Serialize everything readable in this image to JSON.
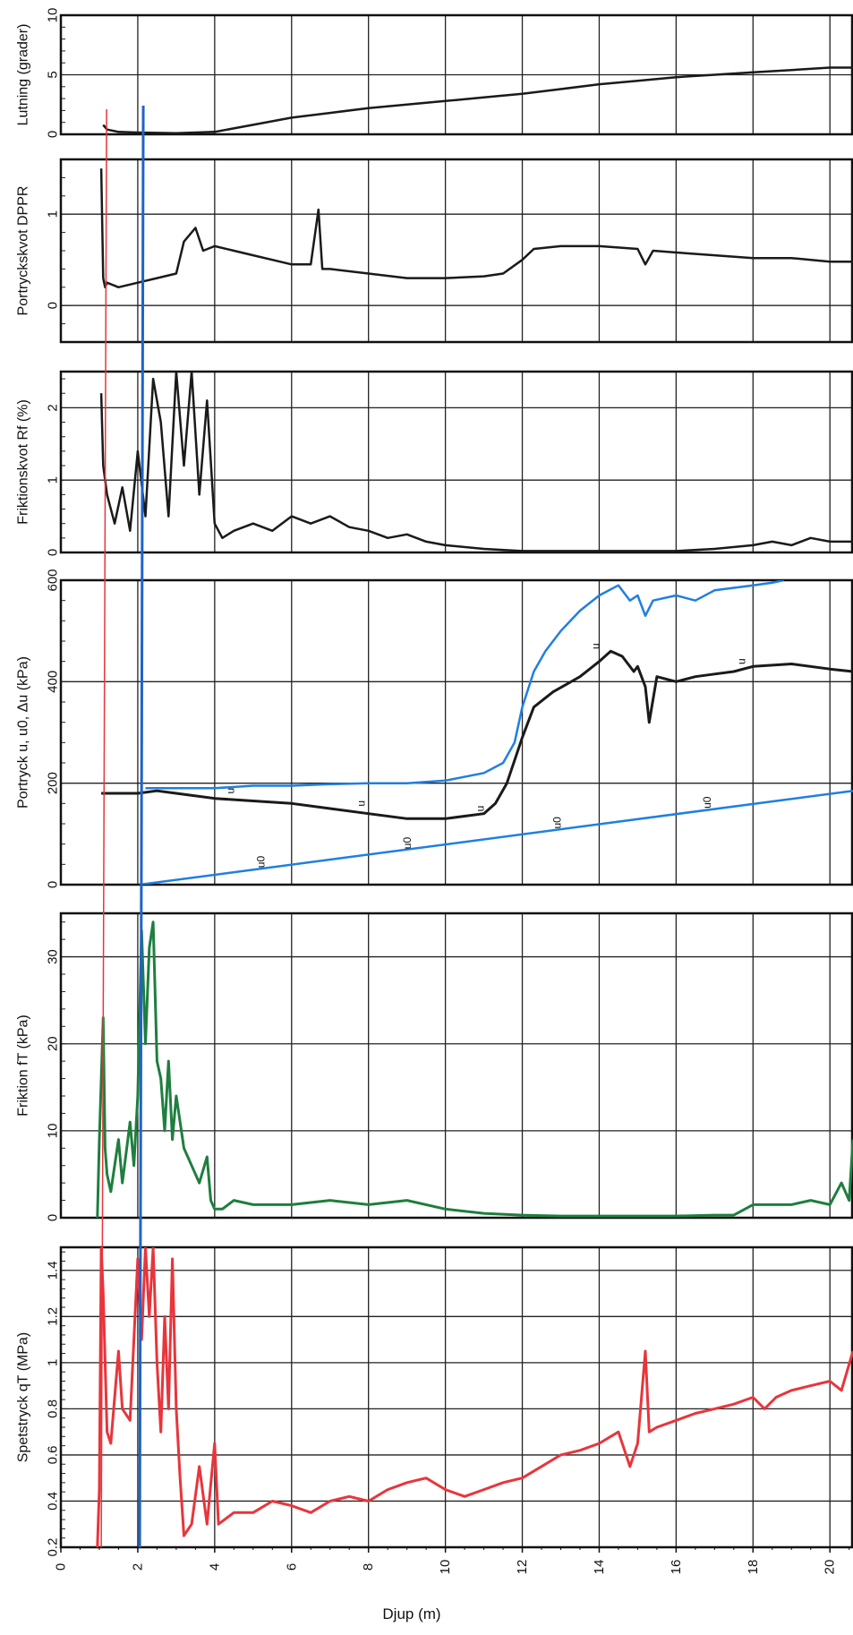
{
  "chart_data": {
    "type": "line",
    "x_axis": {
      "label": "Djup (m)",
      "range": [
        0,
        20.6
      ],
      "ticks": [
        0,
        2,
        4,
        6,
        8,
        10,
        12,
        14,
        16,
        18,
        20
      ]
    },
    "markers": [
      {
        "name": "red-marker-line",
        "depth": 1.05,
        "color": "#e8353b"
      },
      {
        "name": "blue-marker-line",
        "depth": 2.05,
        "color": "#1f63c9"
      }
    ],
    "panels": [
      {
        "id": "lutning",
        "ylabel": "Lutning (grader)",
        "ylim": [
          0,
          10
        ],
        "ticks": [
          0,
          5,
          10
        ],
        "series": [
          {
            "color": "#1a1a1a",
            "width": 2.5,
            "x": [
              1.1,
              1.2,
              1.5,
              2,
              3,
              4,
              5,
              6,
              7,
              8,
              9,
              10,
              11,
              12,
              13,
              14,
              15,
              16,
              17,
              18,
              19,
              20,
              20.6
            ],
            "y": [
              0.8,
              0.4,
              0.2,
              0.15,
              0.1,
              0.2,
              0.8,
              1.4,
              1.8,
              2.2,
              2.5,
              2.8,
              3.1,
              3.4,
              3.8,
              4.2,
              4.5,
              4.8,
              5.0,
              5.2,
              5.4,
              5.6,
              5.6
            ]
          }
        ]
      },
      {
        "id": "dppr",
        "ylabel": "Portryckskvot DPPR",
        "ylim": [
          -0.4,
          1.6
        ],
        "ticks": [
          0,
          1
        ],
        "series": [
          {
            "color": "#1a1a1a",
            "width": 2.5,
            "x": [
              1.05,
              1.1,
              1.15,
              1.2,
              1.5,
              2,
              2.5,
              3,
              3.2,
              3.5,
              3.7,
              4,
              4.5,
              5,
              5.5,
              6,
              6.5,
              6.7,
              6.8,
              7,
              8,
              9,
              10,
              11,
              11.5,
              12,
              12.3,
              13,
              14,
              15,
              15.2,
              15.4,
              16,
              17,
              18,
              19,
              20,
              20.6
            ],
            "y": [
              1.5,
              0.3,
              0.2,
              0.25,
              0.2,
              0.25,
              0.3,
              0.35,
              0.7,
              0.85,
              0.6,
              0.65,
              0.6,
              0.55,
              0.5,
              0.45,
              0.45,
              1.05,
              0.4,
              0.4,
              0.35,
              0.3,
              0.3,
              0.32,
              0.35,
              0.5,
              0.62,
              0.65,
              0.65,
              0.62,
              0.45,
              0.6,
              0.58,
              0.55,
              0.52,
              0.52,
              0.48,
              0.48
            ]
          }
        ]
      },
      {
        "id": "rf",
        "ylabel": "Friktionskvot Rf (%)",
        "ylim": [
          0,
          2.5
        ],
        "ticks": [
          0,
          1,
          2
        ],
        "series": [
          {
            "color": "#1a1a1a",
            "width": 2.5,
            "x": [
              1.05,
              1.1,
              1.2,
              1.4,
              1.6,
              1.8,
              2.0,
              2.2,
              2.4,
              2.6,
              2.8,
              3.0,
              3.2,
              3.4,
              3.6,
              3.8,
              4.0,
              4.2,
              4.5,
              5,
              5.5,
              6,
              6.5,
              7,
              7.5,
              8,
              8.5,
              9,
              9.5,
              10,
              11,
              12,
              13,
              14,
              15,
              16,
              17,
              18,
              18.5,
              19,
              19.5,
              20,
              20.6
            ],
            "y": [
              2.2,
              1.2,
              0.8,
              0.4,
              0.9,
              0.3,
              1.4,
              0.5,
              2.4,
              1.8,
              0.5,
              2.5,
              1.2,
              2.5,
              0.8,
              2.1,
              0.4,
              0.2,
              0.3,
              0.4,
              0.3,
              0.5,
              0.4,
              0.5,
              0.35,
              0.3,
              0.2,
              0.25,
              0.15,
              0.1,
              0.05,
              0.02,
              0.02,
              0.02,
              0.02,
              0.02,
              0.05,
              0.1,
              0.15,
              0.1,
              0.2,
              0.15,
              0.15
            ]
          }
        ]
      },
      {
        "id": "portryck",
        "ylabel": "Portryck u, u0, Δu (kPa)",
        "ylim": [
          0,
          600
        ],
        "ticks": [
          0,
          200,
          400,
          600
        ],
        "series": [
          {
            "color": "#1f7fe0",
            "width": 2.5,
            "x": [
              2.2,
              3,
              4,
              5,
              6,
              7,
              8,
              9,
              10,
              11,
              11.5,
              11.8,
              12,
              12.3,
              12.6,
              13,
              13.5,
              14,
              14.5,
              14.8,
              15,
              15.2,
              15.4,
              16,
              16.5,
              17,
              17.5,
              18,
              18.5,
              18.8
            ],
            "y": [
              190,
              190,
              190,
              195,
              195,
              198,
              200,
              200,
              205,
              220,
              240,
              280,
              350,
              420,
              460,
              500,
              540,
              570,
              590,
              560,
              570,
              530,
              560,
              570,
              560,
              580,
              585,
              590,
              595,
              600
            ]
          },
          {
            "color": "#1a1a1a",
            "width": 3,
            "x": [
              1.05,
              1.5,
              2,
              2.5,
              3,
              4,
              5,
              6,
              7,
              8,
              9,
              10,
              10.5,
              11,
              11.3,
              11.6,
              12,
              12.3,
              12.8,
              13.5,
              14,
              14.3,
              14.6,
              14.9,
              15.0,
              15.2,
              15.3,
              15.5,
              16,
              16.5,
              17,
              17.5,
              18,
              19,
              20,
              20.6
            ],
            "y": [
              180,
              180,
              180,
              185,
              180,
              170,
              165,
              160,
              150,
              140,
              130,
              130,
              135,
              140,
              160,
              200,
              290,
              350,
              380,
              410,
              440,
              460,
              450,
              420,
              430,
              390,
              320,
              410,
              400,
              410,
              415,
              420,
              430,
              435,
              425,
              420
            ]
          },
          {
            "color": "#1f7fe0",
            "width": 2.5,
            "x": [
              2.05,
              20.6
            ],
            "y": [
              0,
              185
            ]
          }
        ],
        "annotations": [
          {
            "text": "u",
            "x": 4.5,
            "y": 185
          },
          {
            "text": "u",
            "x": 7.9,
            "y": 160
          },
          {
            "text": "u",
            "x": 11.0,
            "y": 150
          },
          {
            "text": "u",
            "x": 14.0,
            "y": 470
          },
          {
            "text": "u",
            "x": 17.8,
            "y": 440
          },
          {
            "text": "u0",
            "x": 5.3,
            "y": 45
          },
          {
            "text": "u0",
            "x": 9.1,
            "y": 82
          },
          {
            "text": "u0",
            "x": 13.0,
            "y": 122
          },
          {
            "text": "u0",
            "x": 16.9,
            "y": 162
          }
        ]
      },
      {
        "id": "friktion",
        "ylabel": "Friktion fT (kPa)",
        "ylim": [
          0,
          35
        ],
        "ticks": [
          0,
          10,
          20,
          30
        ],
        "series": [
          {
            "color": "#1e7f3e",
            "width": 3,
            "x": [
              0.95,
              1.0,
              1.1,
              1.15,
              1.2,
              1.3,
              1.5,
              1.6,
              1.8,
              1.9,
              2.0,
              2.1,
              2.2,
              2.3,
              2.4,
              2.5,
              2.6,
              2.7,
              2.8,
              2.9,
              3.0,
              3.2,
              3.4,
              3.6,
              3.8,
              3.9,
              4.0,
              4.2,
              4.5,
              5,
              5.5,
              6,
              7,
              8,
              9,
              10,
              11,
              12,
              13,
              14,
              15,
              16,
              17,
              17.5,
              18,
              19,
              19.5,
              20,
              20.3,
              20.5,
              20.6
            ],
            "y": [
              0,
              9,
              23,
              8,
              5,
              3,
              9,
              4,
              11,
              6,
              14,
              33,
              20,
              31,
              34,
              18,
              16,
              10,
              18,
              9,
              14,
              8,
              6,
              4,
              7,
              2,
              1,
              1,
              2,
              1.5,
              1.5,
              1.5,
              2,
              1.5,
              2,
              1,
              0.5,
              0.3,
              0.2,
              0.2,
              0.2,
              0.2,
              0.3,
              0.3,
              1.5,
              1.5,
              2,
              1.5,
              4,
              2,
              9
            ]
          }
        ]
      },
      {
        "id": "spetstryck",
        "ylabel": "Spetstryck qT (MPa)",
        "ylim": [
          0.2,
          1.5
        ],
        "ticks": [
          0.2,
          0.4,
          0.6,
          0.8,
          1.0,
          1.2,
          1.4
        ],
        "series": [
          {
            "color": "#e8353b",
            "width": 3,
            "x": [
              0.95,
              1.0,
              1.05,
              1.1,
              1.2,
              1.3,
              1.5,
              1.6,
              1.8,
              2.0,
              2.1,
              2.2,
              2.3,
              2.4,
              2.5,
              2.6,
              2.7,
              2.8,
              2.9,
              3.0,
              3.1,
              3.2,
              3.4,
              3.6,
              3.8,
              4.0,
              4.1,
              4.5,
              5,
              5.5,
              6,
              6.5,
              7,
              7.5,
              8,
              8.5,
              9,
              9.5,
              10,
              10.5,
              11,
              11.5,
              12,
              12.5,
              13,
              13.5,
              14,
              14.5,
              14.8,
              15,
              15.2,
              15.3,
              15.5,
              16,
              16.5,
              17,
              17.5,
              18,
              18.3,
              18.6,
              19,
              19.5,
              20,
              20.3,
              20.6
            ],
            "y": [
              0.2,
              0.45,
              1.5,
              1.3,
              0.7,
              0.65,
              1.05,
              0.8,
              0.75,
              1.45,
              1.1,
              1.5,
              1.2,
              1.5,
              1.0,
              0.7,
              1.2,
              0.8,
              1.45,
              0.8,
              0.5,
              0.25,
              0.3,
              0.55,
              0.3,
              0.65,
              0.3,
              0.35,
              0.35,
              0.4,
              0.38,
              0.35,
              0.4,
              0.42,
              0.4,
              0.45,
              0.48,
              0.5,
              0.45,
              0.42,
              0.45,
              0.48,
              0.5,
              0.55,
              0.6,
              0.62,
              0.65,
              0.7,
              0.55,
              0.65,
              1.05,
              0.7,
              0.72,
              0.75,
              0.78,
              0.8,
              0.82,
              0.85,
              0.8,
              0.85,
              0.88,
              0.9,
              0.92,
              0.88,
              1.05
            ]
          }
        ]
      }
    ]
  }
}
